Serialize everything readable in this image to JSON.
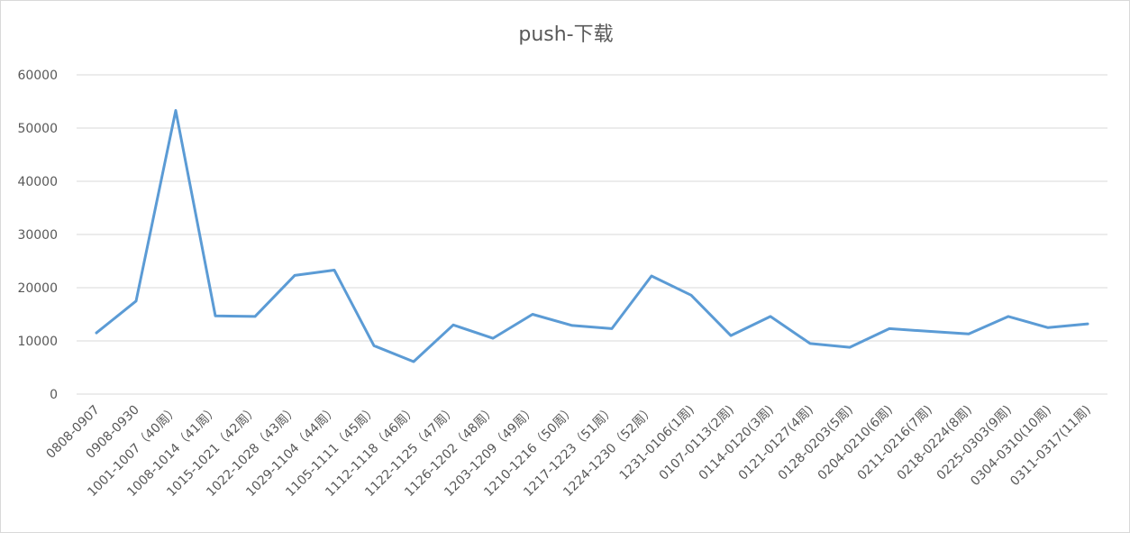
{
  "chart_data": {
    "type": "line",
    "title": "push-下载",
    "xlabel": "",
    "ylabel": "",
    "ylim": [
      0,
      60000
    ],
    "yticks": [
      0,
      10000,
      20000,
      30000,
      40000,
      50000,
      60000
    ],
    "grid": true,
    "legend": "none",
    "color": "#5b9bd5",
    "categories": [
      "0808-0907",
      "0908-0930",
      "1001-1007（40周）",
      "1008-1014（41周）",
      "1015-1021（42周）",
      "1022-1028（43周）",
      "1029-1104（44周）",
      "1105-1111（45周）",
      "1112-1118（46周）",
      "1122-1125（47周）",
      "1126-1202（48周）",
      "1203-1209（49周）",
      "1210-1216（50周）",
      "1217-1223（51周）",
      "1224-1230（52周）",
      "1231-0106(1周)",
      "0107-0113(2周)",
      "0114-0120(3周)",
      "0121-0127(4周)",
      "0128-0203(5周)",
      "0204-0210(6周)",
      "0211-0216(7周)",
      "0218-0224(8周)",
      "0225-0303(9周)",
      "0304-0310(10周)",
      "0311-0317(11周)"
    ],
    "series": [
      {
        "values": [
          11500,
          17500,
          53300,
          14700,
          14600,
          22300,
          23300,
          9100,
          6100,
          13000,
          10500,
          15000,
          12900,
          12300,
          22200,
          18600,
          11000,
          14600,
          9500,
          8800,
          12300,
          11800,
          11300,
          14600,
          12500,
          13200
        ]
      }
    ]
  }
}
